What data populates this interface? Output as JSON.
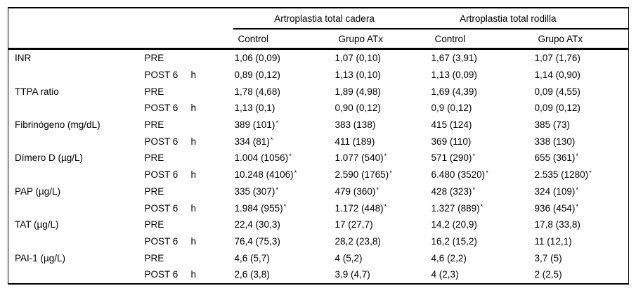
{
  "table": {
    "group_headers": [
      {
        "label": "Artroplastia total cadera"
      },
      {
        "label": "Artroplastia total rodilla"
      }
    ],
    "sub_headers": [
      "Control",
      "Grupo ATx",
      "Control",
      "Grupo ATx"
    ],
    "rows": [
      {
        "param": "INR",
        "time": "PRE",
        "h": "",
        "cells": [
          "1,06 (0,09)",
          "1,07 (0,10)",
          "1,67 (3,91)",
          "1,07 (1,76)"
        ]
      },
      {
        "param": "",
        "time": "POST 6",
        "h": "h",
        "cells": [
          "0,89 (0,12)",
          "1,13 (0,10)",
          "1,13 (0,09)",
          "1,14 (0,90)"
        ]
      },
      {
        "param": "TTPA ratio",
        "time": "PRE",
        "h": "",
        "cells": [
          "1,78 (4,68)",
          "1,89 (4,98)",
          "1,69 (4,39)",
          "0,09 (4,55)"
        ]
      },
      {
        "param": "",
        "time": "POST 6",
        "h": "h",
        "cells": [
          "1,13 (0,1)",
          "0,90 (0,12)",
          "0,9 (0,12)",
          "0,09 (0,12)"
        ]
      },
      {
        "param": "Fibrinógeno (mg/dL)",
        "time": "PRE",
        "h": "",
        "cells": [
          "389 (101)*",
          "383 (138)",
          "415 (124)",
          "385 (73)"
        ]
      },
      {
        "param": "",
        "time": "POST 6",
        "h": "h",
        "cells": [
          "334 (81)*",
          "411 (189)",
          "369 (110)",
          "338 (130)"
        ]
      },
      {
        "param": "Dímero D (µg/L)",
        "time": "PRE",
        "h": "",
        "cells": [
          "1.004 (1056)*",
          "1.077 (540)*",
          "571 (290)*",
          "655 (361)*"
        ]
      },
      {
        "param": "",
        "time": "POST 6",
        "h": "h",
        "cells": [
          "10.248 (4106)*",
          "2.590 (1765)*",
          "6.480 (3520)*",
          "2.535 (1280)*"
        ]
      },
      {
        "param": "PAP (µg/L)",
        "time": "PRE",
        "h": "",
        "cells": [
          "335 (307)*",
          "479 (360)*",
          "428 (323)*",
          "324 (109)*"
        ]
      },
      {
        "param": "",
        "time": "POST 6",
        "h": "h",
        "cells": [
          "1.984 (955)*",
          "1.172 (448)*",
          "1.327 (889)*",
          "936 (454)*"
        ]
      },
      {
        "param": "TAT (µg/L)",
        "time": "PRE",
        "h": "",
        "cells": [
          "22,4 (30,3)",
          "17 (27,7)",
          "14,2 (20,9)",
          "17,8 (33,8)"
        ]
      },
      {
        "param": "",
        "time": "POST 6",
        "h": "h",
        "cells": [
          "76,4 (75,3)",
          "28,2 (23,8)",
          "16,2 (15,2)",
          "11 (12,1)"
        ]
      },
      {
        "param": "PAI-1 (µg/L)",
        "time": "PRE",
        "h": "",
        "cells": [
          "4,6 (5,7)",
          "4 (5,2)",
          "4,6 (2,2)",
          "3,7 (5)"
        ]
      },
      {
        "param": "",
        "time": "POST 6",
        "h": "h",
        "cells": [
          "2,6 (3,8)",
          "3,9 (4,7)",
          "4 (2,3)",
          "2 (2,5)"
        ]
      }
    ]
  }
}
